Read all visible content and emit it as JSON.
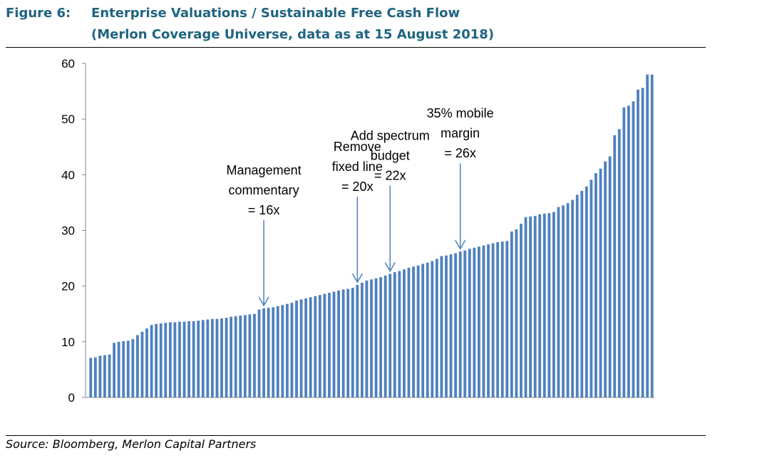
{
  "figure": {
    "label": "Figure 6:",
    "title_line1": "Enterprise Valuations / Sustainable Free Cash Flow",
    "title_line2": "(Merlon Coverage Universe, data as at 15 August 2018)",
    "source": "Source: Bloomberg, Merlon Capital Partners"
  },
  "colors": {
    "bar": "#4f81bd",
    "title": "#1f6480",
    "arrow": "#4f81bd"
  },
  "chart_data": {
    "type": "bar",
    "ylim": [
      0,
      60
    ],
    "yticks": [
      0,
      10,
      20,
      30,
      40,
      50,
      60
    ],
    "grid": false,
    "legend": "none",
    "values": [
      7.1,
      7.2,
      7.5,
      7.6,
      7.7,
      9.8,
      10.0,
      10.1,
      10.2,
      10.5,
      11.2,
      11.8,
      12.4,
      13.0,
      13.2,
      13.3,
      13.4,
      13.5,
      13.5,
      13.6,
      13.6,
      13.7,
      13.7,
      13.8,
      13.9,
      14.0,
      14.1,
      14.1,
      14.2,
      14.3,
      14.5,
      14.6,
      14.7,
      14.8,
      14.9,
      15.0,
      15.8,
      16.0,
      16.1,
      16.2,
      16.4,
      16.6,
      16.8,
      17.0,
      17.4,
      17.6,
      17.8,
      18.0,
      18.2,
      18.4,
      18.6,
      18.8,
      19.0,
      19.2,
      19.4,
      19.5,
      19.7,
      20.2,
      20.6,
      21.0,
      21.2,
      21.4,
      21.6,
      21.9,
      22.2,
      22.5,
      22.7,
      23.0,
      23.3,
      23.5,
      23.7,
      24.0,
      24.2,
      24.5,
      24.9,
      25.4,
      25.5,
      25.7,
      25.9,
      26.2,
      26.4,
      26.7,
      26.9,
      27.1,
      27.3,
      27.5,
      27.7,
      27.9,
      28.0,
      28.1,
      29.8,
      30.2,
      31.2,
      32.4,
      32.5,
      32.6,
      32.9,
      33.0,
      33.1,
      33.3,
      34.2,
      34.5,
      34.9,
      35.5,
      36.4,
      37.1,
      37.9,
      39.1,
      40.3,
      41.1,
      42.4,
      43.3,
      47.1,
      48.2,
      52.1,
      52.4,
      53.2,
      55.3,
      55.6,
      58.0,
      58.0
    ],
    "annotations": [
      {
        "lines": [
          "Management",
          "commentary",
          "= 16x"
        ],
        "value": 16
      },
      {
        "lines": [
          "Remove",
          "fixed line",
          "= 20x"
        ],
        "value": 20
      },
      {
        "lines": [
          "Add spectrum",
          "budget",
          "= 22x"
        ],
        "value": 22
      },
      {
        "lines": [
          "35% mobile",
          "margin",
          "= 26x"
        ],
        "value": 26
      }
    ]
  }
}
